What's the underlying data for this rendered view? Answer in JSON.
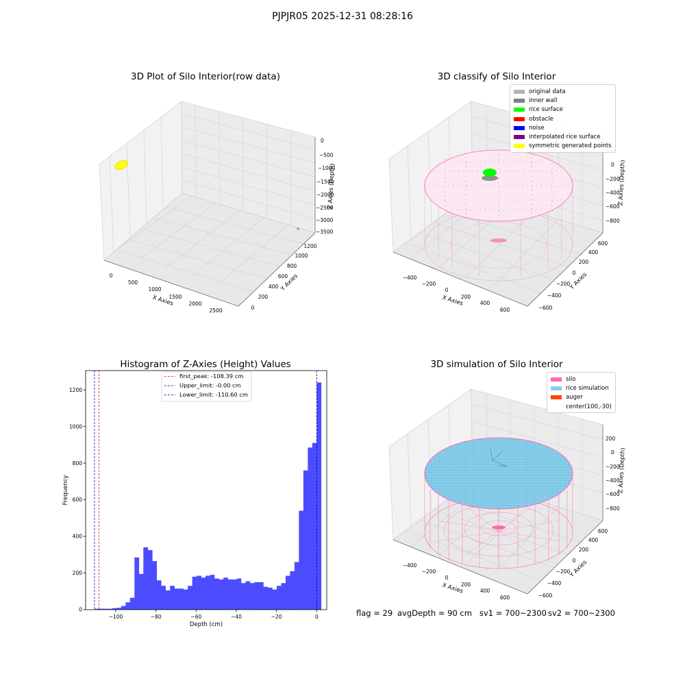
{
  "figure": {
    "suptitle": "PJPJR05 2025-12-31 08:28:16"
  },
  "colors": {
    "original": "#b3b3b3",
    "inner_wall": "#808080",
    "rice_surface": "#00ff00",
    "obstacle": "#ff0000",
    "noise": "#0000ff",
    "interpolated": "#800080",
    "symmetric": "#ffff00",
    "hist_bar": "#4c4cff",
    "silo": "#ff69b4",
    "rice_sim": "#87ceeb",
    "auger": "#ff4500"
  },
  "plot1": {
    "title": "3D Plot of Silo Interior(row data)",
    "xlabel": "X Axies",
    "ylabel": "Y Axies",
    "zlabel": "Z Axies (Depth)",
    "xticks": [
      "0",
      "500",
      "1000",
      "1500",
      "2000",
      "2500"
    ],
    "yticks": [
      "0",
      "200",
      "400",
      "600",
      "800",
      "1000",
      "1200"
    ],
    "zticks": [
      "0",
      "−500",
      "−1000",
      "−1500",
      "−2000",
      "−2500",
      "−3000",
      "−3500"
    ]
  },
  "plot2": {
    "title": "3D classify of Silo Interior",
    "xlabel": "X Axies",
    "ylabel": "Y Axies",
    "zlabel": "Z Axies (Depth)",
    "xticks": [
      "−400",
      "−200",
      "0",
      "200",
      "400",
      "600"
    ],
    "yticks": [
      "−600",
      "−400",
      "−200",
      "0",
      "200",
      "400",
      "600"
    ],
    "zticks": [
      "200",
      "0",
      "−200",
      "−400",
      "−600",
      "−800"
    ],
    "legend": [
      "original data",
      "inner wall",
      "rice surface",
      "obstacle",
      "noise",
      "interpolated rice surface",
      "symmetric generated points"
    ]
  },
  "plot4": {
    "title": "3D simulation of Silo Interior",
    "xlabel": "X Axies",
    "ylabel": "Y Axies",
    "zlabel": "Z Axies (Depth)",
    "xticks": [
      "−400",
      "−200",
      "0",
      "200",
      "400",
      "600"
    ],
    "yticks": [
      "−600",
      "−400",
      "−200",
      "0",
      "200",
      "400",
      "600"
    ],
    "zticks": [
      "200",
      "0",
      "−200",
      "−400",
      "−600",
      "−800"
    ],
    "legend": [
      "silo",
      "rice simulation",
      "auger",
      "center(100,-30)"
    ]
  },
  "status": {
    "flag": "flag = 29",
    "avg_depth": "avgDepth = 90 cm",
    "sv1": "sv1 = 700~2300",
    "sv2": "sv2 = 700~2300"
  },
  "chart_data": [
    {
      "type": "histogram",
      "title": "Histogram of Z-Axies (Height) Values",
      "xlabel": "Depth (cm)",
      "ylabel": "Frequency",
      "xlim": [
        -115,
        5
      ],
      "ylim": [
        0,
        1305
      ],
      "xticks": [
        -100,
        -80,
        -60,
        -40,
        -20,
        0
      ],
      "xtick_labels": [
        "−100",
        "−80",
        "−60",
        "−40",
        "−20",
        "0"
      ],
      "yticks": [
        0,
        200,
        400,
        600,
        800,
        1000,
        1200
      ],
      "bin_start": -110.6,
      "bin_width": 2.212,
      "counts": [
        5,
        5,
        5,
        5,
        8,
        10,
        20,
        40,
        65,
        285,
        195,
        340,
        325,
        265,
        160,
        130,
        105,
        130,
        115,
        115,
        110,
        130,
        180,
        185,
        175,
        185,
        190,
        170,
        165,
        175,
        165,
        165,
        170,
        145,
        155,
        145,
        150,
        150,
        125,
        120,
        110,
        130,
        145,
        185,
        210,
        260,
        540,
        760,
        885,
        910,
        1240
      ],
      "vlines": [
        {
          "label": "first_peak: -108.39 cm",
          "x": -108.39,
          "color": "#ff0000"
        },
        {
          "label": "Upper_limit: -0.00 cm",
          "x": -0.0,
          "color": "#0000aa"
        },
        {
          "label": "Lower_limit: -110.60 cm",
          "x": -110.6,
          "color": "#0000aa"
        }
      ],
      "legend_position": "upper center"
    }
  ]
}
